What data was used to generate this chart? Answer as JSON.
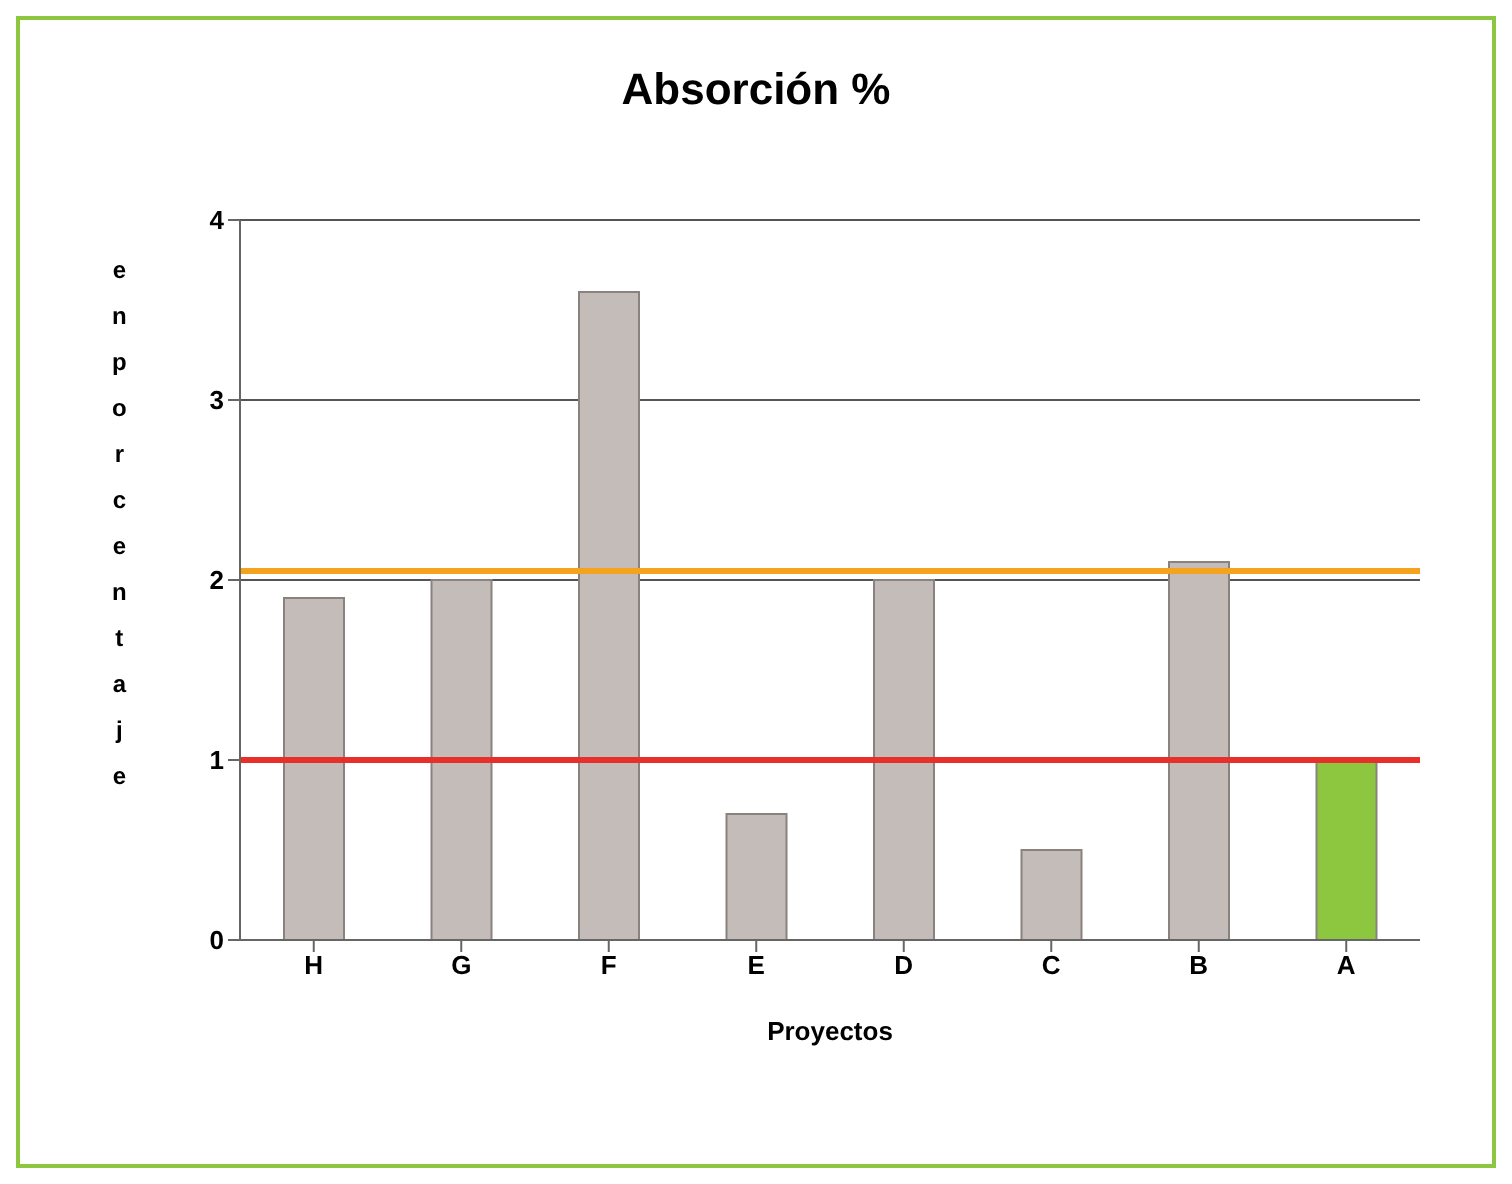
{
  "chart_data": {
    "type": "bar",
    "title": "Absorción %",
    "xlabel": "Proyectos",
    "ylabel": "en porcentaje",
    "categories": [
      "H",
      "G",
      "F",
      "E",
      "D",
      "C",
      "B",
      "A"
    ],
    "values": [
      1.9,
      2.0,
      3.6,
      0.7,
      2.0,
      0.5,
      2.1,
      1.0
    ],
    "colors": [
      "#c3bcb8",
      "#c3bcb8",
      "#c3bcb8",
      "#c3bcb8",
      "#c3bcb8",
      "#c3bcb8",
      "#c3bcb8",
      "#8dc63f"
    ],
    "ylim": [
      0,
      4
    ],
    "yticks": [
      0,
      1,
      2,
      3,
      4
    ],
    "grid": "y",
    "ref_lines": [
      {
        "axis": "y",
        "value": 2.05,
        "color": "#f5a31c"
      },
      {
        "axis": "y",
        "value": 1.0,
        "color": "#e8302a"
      }
    ]
  }
}
